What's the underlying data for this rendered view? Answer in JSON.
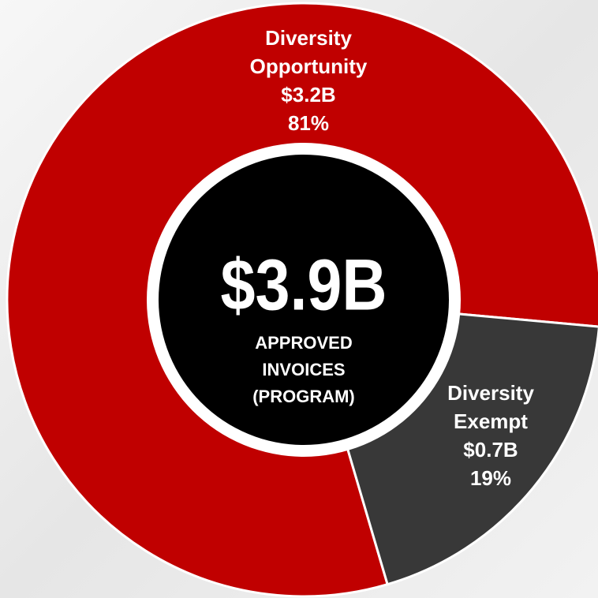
{
  "chart_data": {
    "type": "donut",
    "categories": [
      "Diversity Opportunity",
      "Diversity Exempt"
    ],
    "values": [
      81,
      19
    ],
    "value_labels": [
      "81%",
      "19%"
    ],
    "amount_labels": [
      "$3.2B",
      "$0.7B"
    ],
    "colors": [
      "#c00000",
      "#383838"
    ],
    "center_value": "$3.9B",
    "center_label": [
      "APPROVED",
      "INVOICES",
      "(PROGRAM)"
    ]
  }
}
